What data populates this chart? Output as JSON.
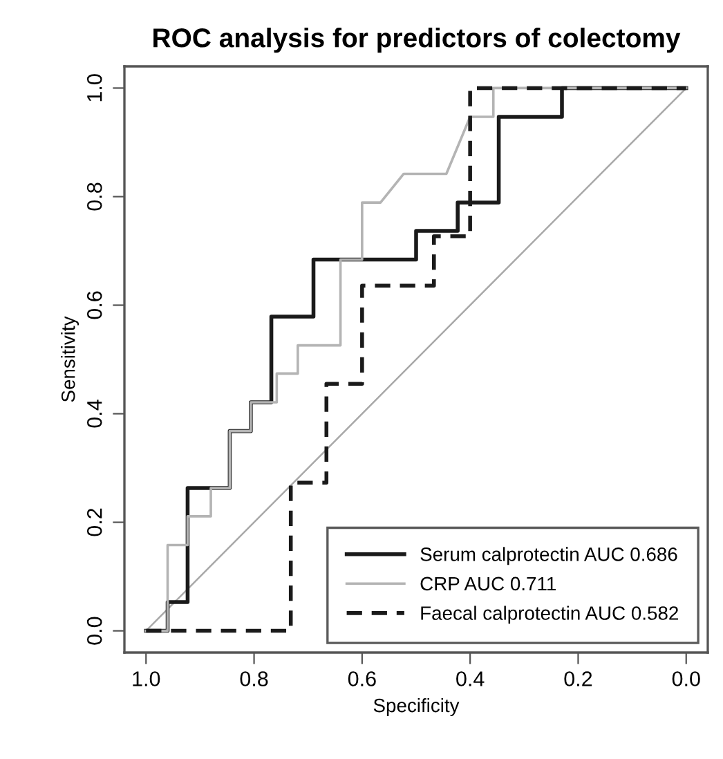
{
  "chart_data": {
    "type": "line",
    "title": "ROC analysis for predictors of colectomy",
    "xlabel": "Specificity",
    "ylabel": "Sensitivity",
    "xlim": [
      1.04,
      -0.04
    ],
    "ylim": [
      -0.04,
      1.04
    ],
    "xticks": [
      {
        "value": 1,
        "label": "1.0"
      },
      {
        "value": 0.8,
        "label": "0.8"
      },
      {
        "value": 0.6,
        "label": "0.6"
      },
      {
        "value": 0.4,
        "label": "0.4"
      },
      {
        "value": 0.2,
        "label": "0.2"
      },
      {
        "value": 0,
        "label": "0.0"
      }
    ],
    "yticks": [
      {
        "value": 0,
        "label": "0.0"
      },
      {
        "value": 0.2,
        "label": "0.2"
      },
      {
        "value": 0.4,
        "label": "0.4"
      },
      {
        "value": 0.6,
        "label": "0.6"
      },
      {
        "value": 0.8,
        "label": "0.8"
      },
      {
        "value": 1,
        "label": "1.0"
      }
    ],
    "grid": false,
    "legend": "bottom right",
    "marker": "none",
    "series": [
      {
        "name": "Serum calprotectin AUC 0.686",
        "color": "#1a1a1a",
        "line_style": "solid",
        "x": [
          1.0,
          0.96,
          0.96,
          0.923,
          0.923,
          0.845,
          0.845,
          0.806,
          0.806,
          0.768,
          0.768,
          0.69,
          0.69,
          0.5,
          0.5,
          0.423,
          0.423,
          0.347,
          0.347,
          0.23,
          0.23,
          0.0
        ],
        "values": [
          0.0,
          0.0,
          0.053,
          0.053,
          0.263,
          0.263,
          0.368,
          0.368,
          0.421,
          0.421,
          0.579,
          0.579,
          0.684,
          0.684,
          0.737,
          0.737,
          0.789,
          0.789,
          0.947,
          0.947,
          1.0,
          1.0
        ]
      },
      {
        "name": "CRP AUC 0.711",
        "color": "#b4b4b4",
        "line_style": "solid",
        "x": [
          1.0,
          0.96,
          0.96,
          0.923,
          0.923,
          0.88,
          0.88,
          0.845,
          0.845,
          0.806,
          0.806,
          0.758,
          0.758,
          0.719,
          0.719,
          0.64,
          0.64,
          0.6,
          0.6,
          0.566,
          0.523,
          0.444,
          0.4,
          0.357,
          0.357,
          0.0
        ],
        "values": [
          0.0,
          0.0,
          0.158,
          0.158,
          0.211,
          0.211,
          0.263,
          0.263,
          0.368,
          0.368,
          0.421,
          0.421,
          0.474,
          0.474,
          0.526,
          0.526,
          0.684,
          0.684,
          0.789,
          0.789,
          0.842,
          0.842,
          0.947,
          0.947,
          1.0,
          1.0
        ]
      },
      {
        "name": "Faecal calprotectin AUC 0.582",
        "color": "#1a1a1a",
        "line_style": "dashed",
        "x": [
          1.0,
          0.732,
          0.732,
          0.666,
          0.666,
          0.6,
          0.6,
          0.467,
          0.467,
          0.4,
          0.4,
          0.0
        ],
        "values": [
          0.0,
          0.0,
          0.273,
          0.273,
          0.455,
          0.455,
          0.636,
          0.636,
          0.727,
          0.727,
          1.0,
          1.0
        ]
      },
      {
        "color": "#a8a8a8",
        "line_style": "solid",
        "x": [
          1.0,
          0.0
        ],
        "values": [
          0.0,
          1.0
        ]
      }
    ]
  }
}
